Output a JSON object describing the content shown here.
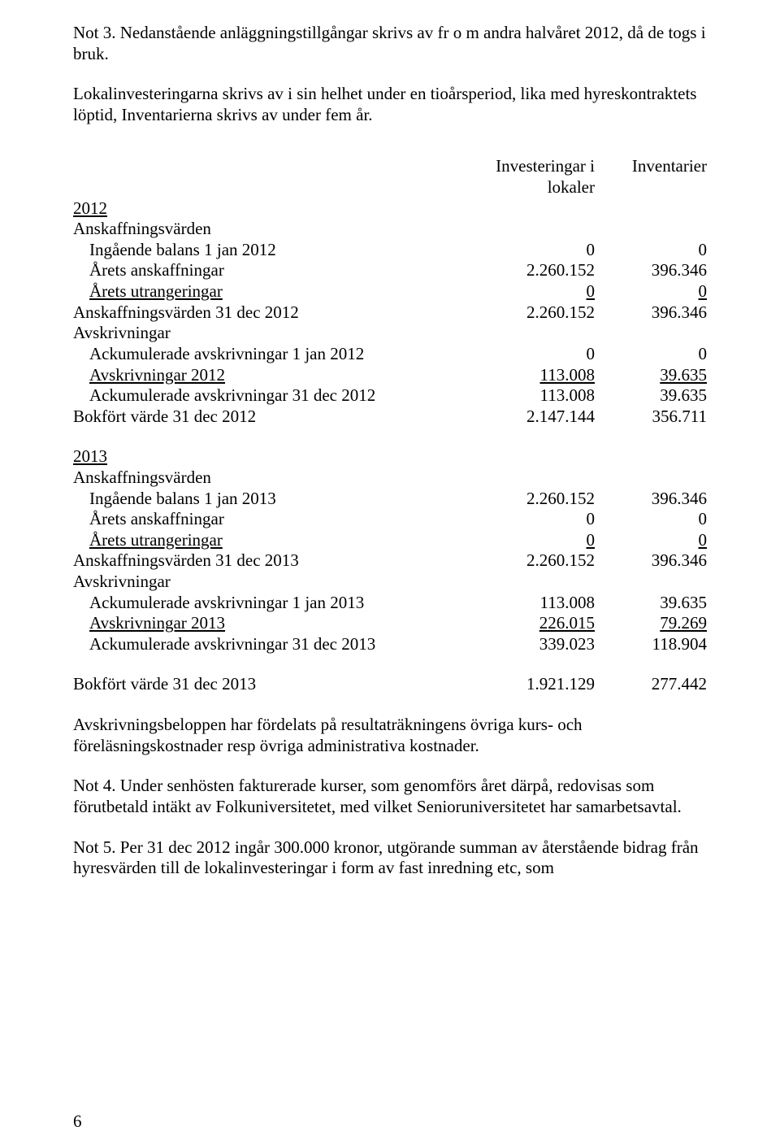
{
  "intro": {
    "p1": "Not 3. Nedanstående anläggningstillgångar skrivs av fr o m andra halvåret 2012, då de togs i bruk.",
    "p2": "Lokalinvesteringarna skrivs av i sin helhet under en tioårsperiod, lika med hyreskontraktets löptid, Inventarierna skrivs av under fem år."
  },
  "headers": {
    "col_a": "Investeringar i lokaler",
    "col_b": "Inventarier"
  },
  "y2012": {
    "year": "2012",
    "section_a": "Anskaffningsvärden",
    "r1_label": "Ingående balans 1 jan 2012",
    "r1_a": "0",
    "r1_b": "0",
    "r2_label": "Årets anskaffningar",
    "r2_a": "2.260.152",
    "r2_b": "396.346",
    "r3_label": "Årets utrangeringar",
    "r3_a": "0",
    "r3_b": "0",
    "r4_label": "Anskaffningsvärden 31 dec 2012",
    "r4_a": "2.260.152",
    "r4_b": "396.346",
    "section_b": "Avskrivningar",
    "r5_label": "Ackumulerade avskrivningar 1 jan 2012",
    "r5_a": "0",
    "r5_b": "0",
    "r6_label": "Avskrivningar 2012",
    "r6_a": "113.008",
    "r6_b": "39.635",
    "r7_label": "Ackumulerade avskrivningar 31 dec 2012",
    "r7_a": "113.008",
    "r7_b": "39.635",
    "r8_label": "Bokfört värde 31 dec 2012",
    "r8_a": "2.147.144",
    "r8_b": "356.711"
  },
  "y2013": {
    "year": "2013",
    "section_a": "Anskaffningsvärden",
    "r1_label": "Ingående balans 1 jan 2013",
    "r1_a": "2.260.152",
    "r1_b": "396.346",
    "r2_label": "Årets anskaffningar",
    "r2_a": "0",
    "r2_b": "0",
    "r3_label": "Årets utrangeringar",
    "r3_a": "0",
    "r3_b": "0",
    "r4_label": "Anskaffningsvärden 31 dec 2013",
    "r4_a": "2.260.152",
    "r4_b": "396.346",
    "section_b": "Avskrivningar",
    "r5_label": "Ackumulerade avskrivningar 1 jan 2013",
    "r5_a": "113.008",
    "r5_b": "39.635",
    "r6_label": "Avskrivningar 2013",
    "r6_a": "226.015",
    "r6_b": "79.269",
    "r7_label": "Ackumulerade avskrivningar 31 dec 2013",
    "r7_a": "339.023",
    "r7_b": "118.904",
    "r8_label": "Bokfört värde 31 dec 2013",
    "r8_a": "1.921.129",
    "r8_b": "277.442"
  },
  "outro": {
    "p1": "Avskrivningsbeloppen har fördelats på resultaträkningens övriga kurs- och föreläsningskostnader resp övriga administrativa kostnader.",
    "p2": "Not 4. Under senhösten fakturerade kurser, som genomförs året därpå, redovisas som förutbetald intäkt av Folkuniversitetet, med vilket Senioruniversitetet har samarbetsavtal.",
    "p3": "Not 5. Per 31 dec 2012 ingår 300.000 kronor, utgörande summan av återstående bidrag från hyresvärden till de lokalinvesteringar i form av fast inredning etc, som"
  },
  "page_number": "6"
}
